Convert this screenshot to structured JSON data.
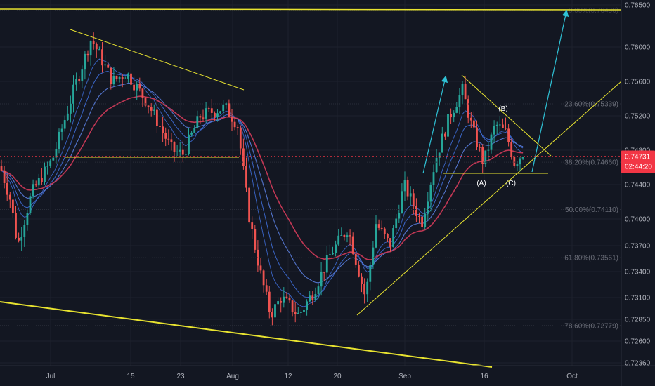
{
  "chart_data": {
    "type": "candlestick",
    "y_ticks": [
      "0.76500",
      "0.76000",
      "0.75600",
      "0.75200",
      "0.74800",
      "0.74400",
      "0.74000",
      "0.73700",
      "0.73400",
      "0.73100",
      "0.72850",
      "0.72600",
      "0.72360"
    ],
    "x_ticks": [
      "Jul",
      "15",
      "23",
      "Aug",
      "12",
      "20",
      "Sep",
      "16",
      "Oct"
    ],
    "ylim": [
      0.7235,
      0.7653
    ],
    "fib_levels": [
      {
        "label": "0.00%(0.76436)",
        "value": 0.76436
      },
      {
        "label": "23.60%(0.75339)",
        "value": 0.75339
      },
      {
        "label": "38.20%(0.74660)",
        "value": 0.7466
      },
      {
        "label": "50.00%(0.74110)",
        "value": 0.7411
      },
      {
        "label": "61.80%(0.73561)",
        "value": 0.73561
      },
      {
        "label": "78.60%(0.72779)",
        "value": 0.72779
      }
    ],
    "wave_labels": [
      "(A)",
      "(B)",
      "(C)"
    ],
    "price_badge": {
      "value": "0.74731",
      "countdown": "02:44:20"
    },
    "colors": {
      "background": "#131722",
      "up": "#26a69a",
      "down": "#ef5350",
      "trendline": "#e8e330",
      "arrow": "#2fc2d6",
      "ma_red": "#d43b5a",
      "ma_blue": "#3f6ed8",
      "badge": "#f23645"
    }
  }
}
